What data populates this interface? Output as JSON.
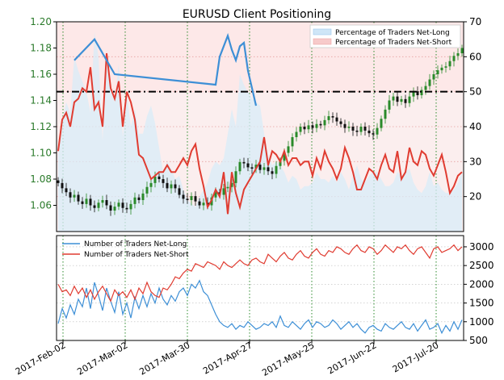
{
  "chart_data": [
    {
      "type": "candlestick",
      "title": "EURUSD Client Positioning",
      "y_left": {
        "range": [
          1.04,
          1.2
        ],
        "ticks": [
          "1.06",
          "1.08",
          "1.10",
          "1.12",
          "1.14",
          "1.16",
          "1.18",
          "1.20"
        ]
      },
      "y_right": {
        "range": [
          10,
          70
        ],
        "ticks": [
          "20",
          "30",
          "40",
          "50",
          "60",
          "70"
        ]
      },
      "legend": [
        {
          "label": "Percentage of Traders Net-Long",
          "color": "#3d8fd6"
        },
        {
          "label": "Percentage of Traders Net-Short",
          "color": "#e03c31"
        }
      ],
      "legend_position": "top-right",
      "reference_line": 50,
      "price_close": [
        1.077,
        1.073,
        1.07,
        1.066,
        1.068,
        1.063,
        1.061,
        1.065,
        1.06,
        1.058,
        1.062,
        1.064,
        1.06,
        1.056,
        1.059,
        1.062,
        1.058,
        1.057,
        1.061,
        1.066,
        1.064,
        1.069,
        1.074,
        1.077,
        1.082,
        1.08,
        1.077,
        1.073,
        1.076,
        1.073,
        1.068,
        1.065,
        1.064,
        1.067,
        1.063,
        1.06,
        1.062,
        1.06,
        1.066,
        1.07,
        1.068,
        1.073,
        1.074,
        1.077,
        1.086,
        1.093,
        1.092,
        1.089,
        1.088,
        1.091,
        1.087,
        1.089,
        1.086,
        1.084,
        1.09,
        1.094,
        1.1,
        1.105,
        1.112,
        1.116,
        1.12,
        1.118,
        1.121,
        1.119,
        1.122,
        1.121,
        1.125,
        1.128,
        1.127,
        1.124,
        1.122,
        1.119,
        1.12,
        1.117,
        1.116,
        1.12,
        1.117,
        1.115,
        1.114,
        1.119,
        1.126,
        1.133,
        1.14,
        1.143,
        1.139,
        1.141,
        1.138,
        1.143,
        1.147,
        1.144,
        1.148,
        1.151,
        1.156,
        1.16,
        1.163,
        1.165,
        1.166,
        1.17,
        1.174,
        1.176,
        1.18
      ],
      "net_long_pct": [
        32,
        42,
        47,
        44,
        60,
        56,
        53,
        50,
        44,
        67,
        60,
        36,
        62,
        51,
        47,
        58,
        37,
        50,
        40,
        45,
        38,
        38,
        43,
        46,
        41,
        34,
        27,
        30,
        28,
        25,
        26,
        22,
        19,
        18,
        17,
        20,
        22,
        24,
        28,
        30,
        29,
        31,
        38,
        45,
        40,
        55,
        52,
        50,
        48,
        47,
        46,
        38,
        32,
        29,
        30,
        29,
        27,
        24,
        26,
        25,
        22,
        23,
        23,
        24,
        27,
        25,
        25,
        24,
        26,
        24,
        27,
        25,
        22,
        26,
        29,
        25,
        24,
        26,
        27,
        27,
        25,
        23,
        23,
        24,
        27,
        26,
        27,
        28,
        24,
        22,
        21,
        23,
        27,
        23,
        24,
        22,
        21,
        21,
        22,
        24,
        27
      ],
      "net_short_pct": [
        33,
        42,
        44,
        40,
        47,
        48,
        51,
        50,
        57,
        45,
        47,
        40,
        61,
        51,
        48,
        53,
        40,
        50,
        47,
        42,
        32,
        31,
        28,
        25,
        26,
        27,
        27,
        29,
        27,
        27,
        29,
        31,
        29,
        33,
        35,
        28,
        23,
        17,
        19,
        22,
        20,
        27,
        15,
        27,
        21,
        17,
        22,
        24,
        26,
        28,
        30,
        37,
        29,
        33,
        32,
        30,
        33,
        29,
        31,
        31,
        29,
        30,
        30,
        26,
        31,
        28,
        33,
        30,
        28,
        25,
        28,
        34,
        31,
        27,
        22,
        22,
        25,
        28,
        27,
        25,
        29,
        32,
        28,
        27,
        33,
        25,
        27,
        34,
        30,
        29,
        33,
        32,
        28,
        26,
        29,
        32,
        27,
        21,
        23,
        26,
        27
      ],
      "net_long_marks": [
        {
          "i": 4,
          "v": 59
        },
        {
          "i": 9,
          "v": 65
        },
        {
          "i": 14,
          "v": 55
        },
        {
          "i": 39,
          "v": 52
        },
        {
          "i": 40,
          "v": 60
        },
        {
          "i": 41,
          "v": 63
        },
        {
          "i": 42,
          "v": 66
        },
        {
          "i": 43,
          "v": 62
        },
        {
          "i": 44,
          "v": 59
        },
        {
          "i": 45,
          "v": 63
        },
        {
          "i": 46,
          "v": 64
        },
        {
          "i": 47,
          "v": 56
        },
        {
          "i": 48,
          "v": 51
        },
        {
          "i": 49,
          "v": 46
        }
      ]
    },
    {
      "type": "line",
      "y_right": {
        "range": [
          500,
          3300
        ],
        "ticks": [
          "500",
          "1000",
          "1500",
          "2000",
          "2500",
          "3000"
        ]
      },
      "x_tick_labels": [
        "2017-Feb-02",
        "2017-Mar-02",
        "2017-Mar-30",
        "2017-Apr-27",
        "2017-May-25",
        "2017-Jun-22",
        "2017-Jul-20"
      ],
      "legend": [
        {
          "label": "Number of Traders Net-Long",
          "color": "#3d8fd6"
        },
        {
          "label": "Number of Traders Net-Short",
          "color": "#e03c31"
        }
      ],
      "legend_position": "top-left",
      "net_long": [
        950,
        1350,
        1100,
        1450,
        1200,
        1600,
        1400,
        1900,
        1350,
        2050,
        1700,
        1300,
        1900,
        1550,
        1250,
        1800,
        1200,
        1500,
        1100,
        1650,
        1350,
        1700,
        1400,
        1750,
        1500,
        1900,
        1600,
        1450,
        1700,
        1550,
        1800,
        1900,
        1700,
        2000,
        1900,
        2100,
        1800,
        1700,
        1450,
        1200,
        1000,
        900,
        850,
        950,
        800,
        900,
        850,
        1000,
        900,
        800,
        850,
        950,
        900,
        1000,
        850,
        1150,
        900,
        850,
        1000,
        900,
        800,
        950,
        1050,
        850,
        1000,
        950,
        850,
        900,
        1050,
        950,
        800,
        900,
        1000,
        850,
        950,
        800,
        700,
        850,
        900,
        800,
        750,
        950,
        850,
        800,
        900,
        1000,
        850,
        800,
        950,
        750,
        900,
        1050,
        800,
        850,
        950,
        700,
        900,
        750,
        1000,
        800,
        1050
      ],
      "net_short": [
        2000,
        1800,
        1850,
        1700,
        1950,
        1750,
        1900,
        1650,
        1850,
        1600,
        1800,
        1950,
        1750,
        1550,
        1850,
        1700,
        1800,
        1650,
        1850,
        1600,
        1900,
        1750,
        2050,
        1800,
        1700,
        1650,
        1900,
        1850,
        2000,
        2200,
        2150,
        2300,
        2400,
        2350,
        2550,
        2500,
        2450,
        2600,
        2550,
        2500,
        2400,
        2600,
        2500,
        2450,
        2550,
        2650,
        2550,
        2500,
        2650,
        2700,
        2600,
        2550,
        2800,
        2700,
        2600,
        2750,
        2850,
        2700,
        2650,
        2800,
        2900,
        2750,
        2700,
        2850,
        2950,
        2800,
        2750,
        2900,
        2850,
        3000,
        2950,
        2850,
        2800,
        2950,
        3050,
        2900,
        2850,
        3000,
        2950,
        2800,
        2900,
        3050,
        2950,
        2850,
        3000,
        2950,
        3050,
        2900,
        2800,
        2950,
        3000,
        2850,
        2700,
        2950,
        3000,
        2850,
        2900,
        2950,
        3050,
        2900,
        3000
      ]
    }
  ]
}
